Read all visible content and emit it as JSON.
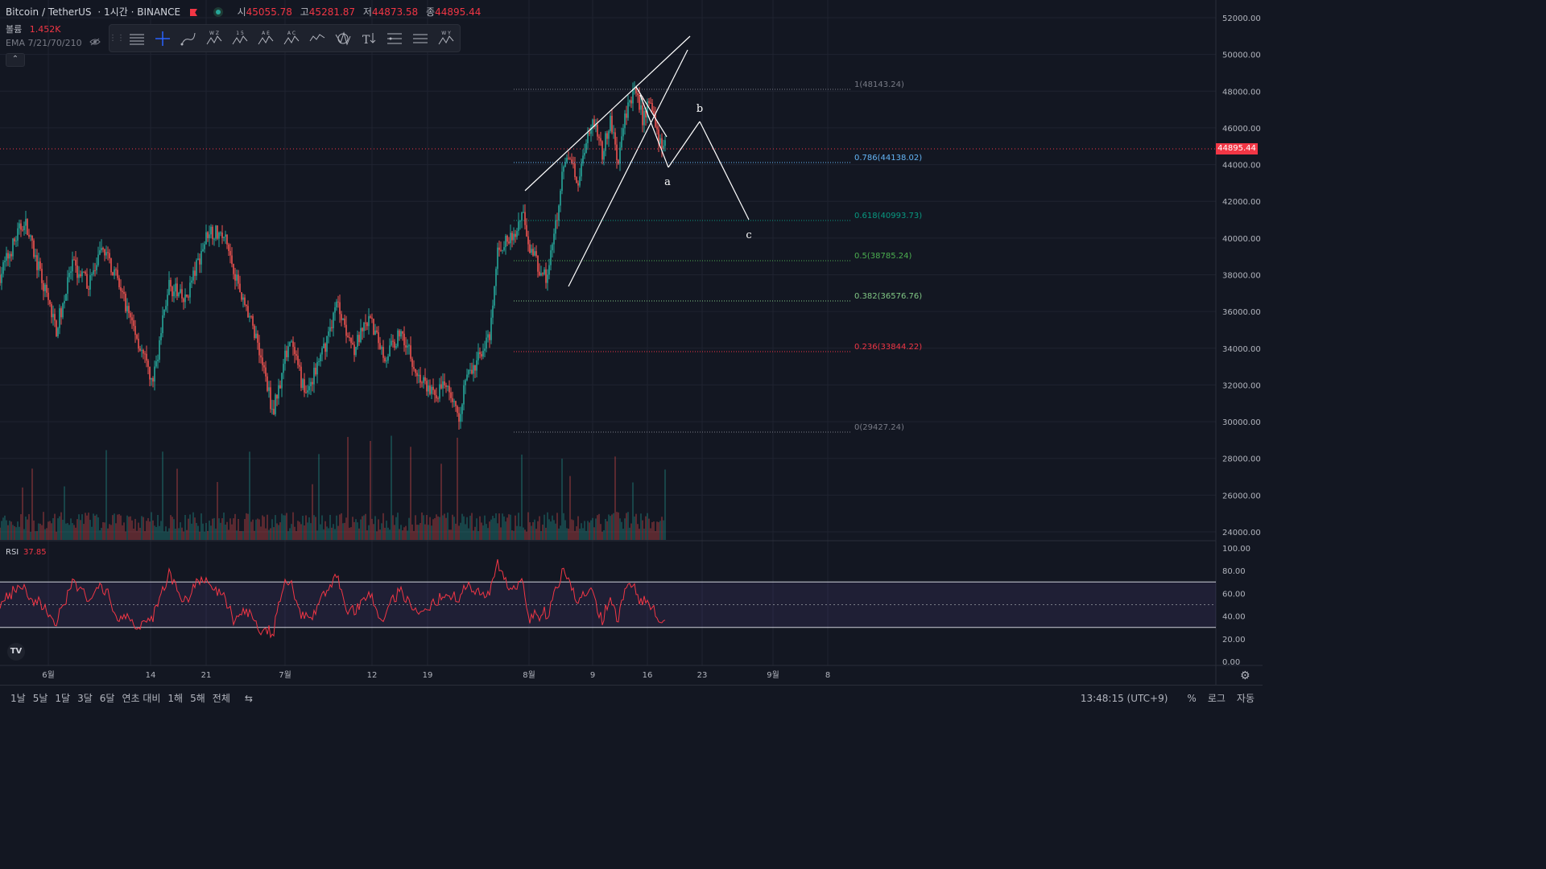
{
  "header": {
    "symbol": "Bitcoin / TetherUS",
    "interval": "1시간",
    "exchange": "BINANCE",
    "open_label": "시",
    "open": "45055.78",
    "high_label": "고",
    "high": "45281.87",
    "low_label": "저",
    "low": "44873.58",
    "close_label": "종",
    "close": "44895.44"
  },
  "volume_legend": {
    "label": "볼륨",
    "value": "1.452K"
  },
  "ema_legend": {
    "label": "EMA 7/21/70/210"
  },
  "rsi_legend": {
    "label": "RSI",
    "value": "37.85"
  },
  "toolbar": {
    "icons": [
      "grip-icon",
      "horizontal-lines-icon",
      "crosshair-icon",
      "brush-icon",
      "elliott-wxyz-icon",
      "elliott-12345-icon",
      "elliott-abcde-icon",
      "elliott-abc-icon",
      "zigzag-icon",
      "pattern-icon",
      "text-arrow-icon",
      "fib-levels-icon",
      "parallel-lines-icon",
      "elliott-wxy-icon"
    ],
    "labels": [
      "W Z",
      "1 5",
      "A E",
      "A C",
      "",
      "",
      "",
      "",
      "",
      "W Y"
    ]
  },
  "current_price": "44895.44",
  "price_axis": [
    "52000.00",
    "50000.00",
    "48000.00",
    "46000.00",
    "44000.00",
    "42000.00",
    "40000.00",
    "38000.00",
    "36000.00",
    "34000.00",
    "32000.00",
    "30000.00",
    "28000.00",
    "26000.00",
    "24000.00"
  ],
  "rsi_axis": [
    "100.00",
    "80.00",
    "60.00",
    "40.00",
    "20.00",
    "0.00"
  ],
  "time_axis": [
    "6월",
    "14",
    "21",
    "7월",
    "12",
    "19",
    "8월",
    "9",
    "16",
    "23",
    "9월",
    "8"
  ],
  "fib_levels": [
    {
      "label": "1(48143.24)",
      "color": "#787b86"
    },
    {
      "label": "0.786(44138.02)",
      "color": "#64b5f6"
    },
    {
      "label": "0.618(40993.73)",
      "color": "#089981"
    },
    {
      "label": "0.5(38785.24)",
      "color": "#4caf50"
    },
    {
      "label": "0.382(36576.76)",
      "color": "#81c784"
    },
    {
      "label": "0.236(33844.22)",
      "color": "#f23645"
    },
    {
      "label": "0(29427.24)",
      "color": "#787b86"
    }
  ],
  "wave_labels": [
    "a",
    "b",
    "c"
  ],
  "timeframes": [
    "1날",
    "5날",
    "1달",
    "3달",
    "6달",
    "연초 대비",
    "1해",
    "5해",
    "전체"
  ],
  "bottom_right": {
    "time": "13:48:15 (UTC+9)",
    "percent": "%",
    "log": "로그",
    "auto": "자동"
  },
  "colors": {
    "up": "#26a69a",
    "down": "#ef5350",
    "rsi": "#f23645",
    "rsi_band": "#7e57c2",
    "background": "#131722"
  },
  "chart_data": {
    "type": "candlestick",
    "y_range": [
      24000,
      52000
    ],
    "close_path_anchors": [
      [
        0,
        38000
      ],
      [
        3,
        41000
      ],
      [
        7,
        35000
      ],
      [
        9,
        38500
      ],
      [
        11,
        37500
      ],
      [
        13,
        39500
      ],
      [
        16,
        36000
      ],
      [
        19,
        32000
      ],
      [
        21,
        37500
      ],
      [
        23,
        36500
      ],
      [
        26,
        40500
      ],
      [
        28,
        40000
      ],
      [
        30,
        37000
      ],
      [
        32,
        34500
      ],
      [
        34,
        30500
      ],
      [
        36,
        34500
      ],
      [
        38,
        31500
      ],
      [
        40,
        33500
      ],
      [
        42,
        36500
      ],
      [
        44,
        34000
      ],
      [
        46,
        35500
      ],
      [
        48,
        33500
      ],
      [
        50,
        35000
      ],
      [
        52,
        32500
      ],
      [
        54,
        31500
      ],
      [
        56,
        32000
      ],
      [
        57,
        30000
      ],
      [
        58,
        32500
      ],
      [
        59,
        32800
      ],
      [
        60,
        34000
      ],
      [
        61,
        34500
      ],
      [
        62,
        39500
      ],
      [
        64,
        40000
      ],
      [
        65,
        41500
      ],
      [
        66,
        39500
      ],
      [
        67,
        38500
      ],
      [
        68,
        37800
      ],
      [
        69,
        40000
      ],
      [
        70,
        43500
      ],
      [
        71,
        44500
      ],
      [
        72,
        43000
      ],
      [
        73,
        45500
      ],
      [
        74,
        46500
      ],
      [
        75,
        44500
      ],
      [
        76,
        46500
      ],
      [
        77,
        44000
      ],
      [
        78,
        47000
      ],
      [
        79,
        48000
      ],
      [
        80,
        46500
      ],
      [
        81,
        47500
      ],
      [
        82,
        45500
      ],
      [
        83,
        44900
      ]
    ],
    "rsi_range": [
      0,
      100
    ],
    "rsi_bands": [
      30,
      50,
      70
    ]
  }
}
